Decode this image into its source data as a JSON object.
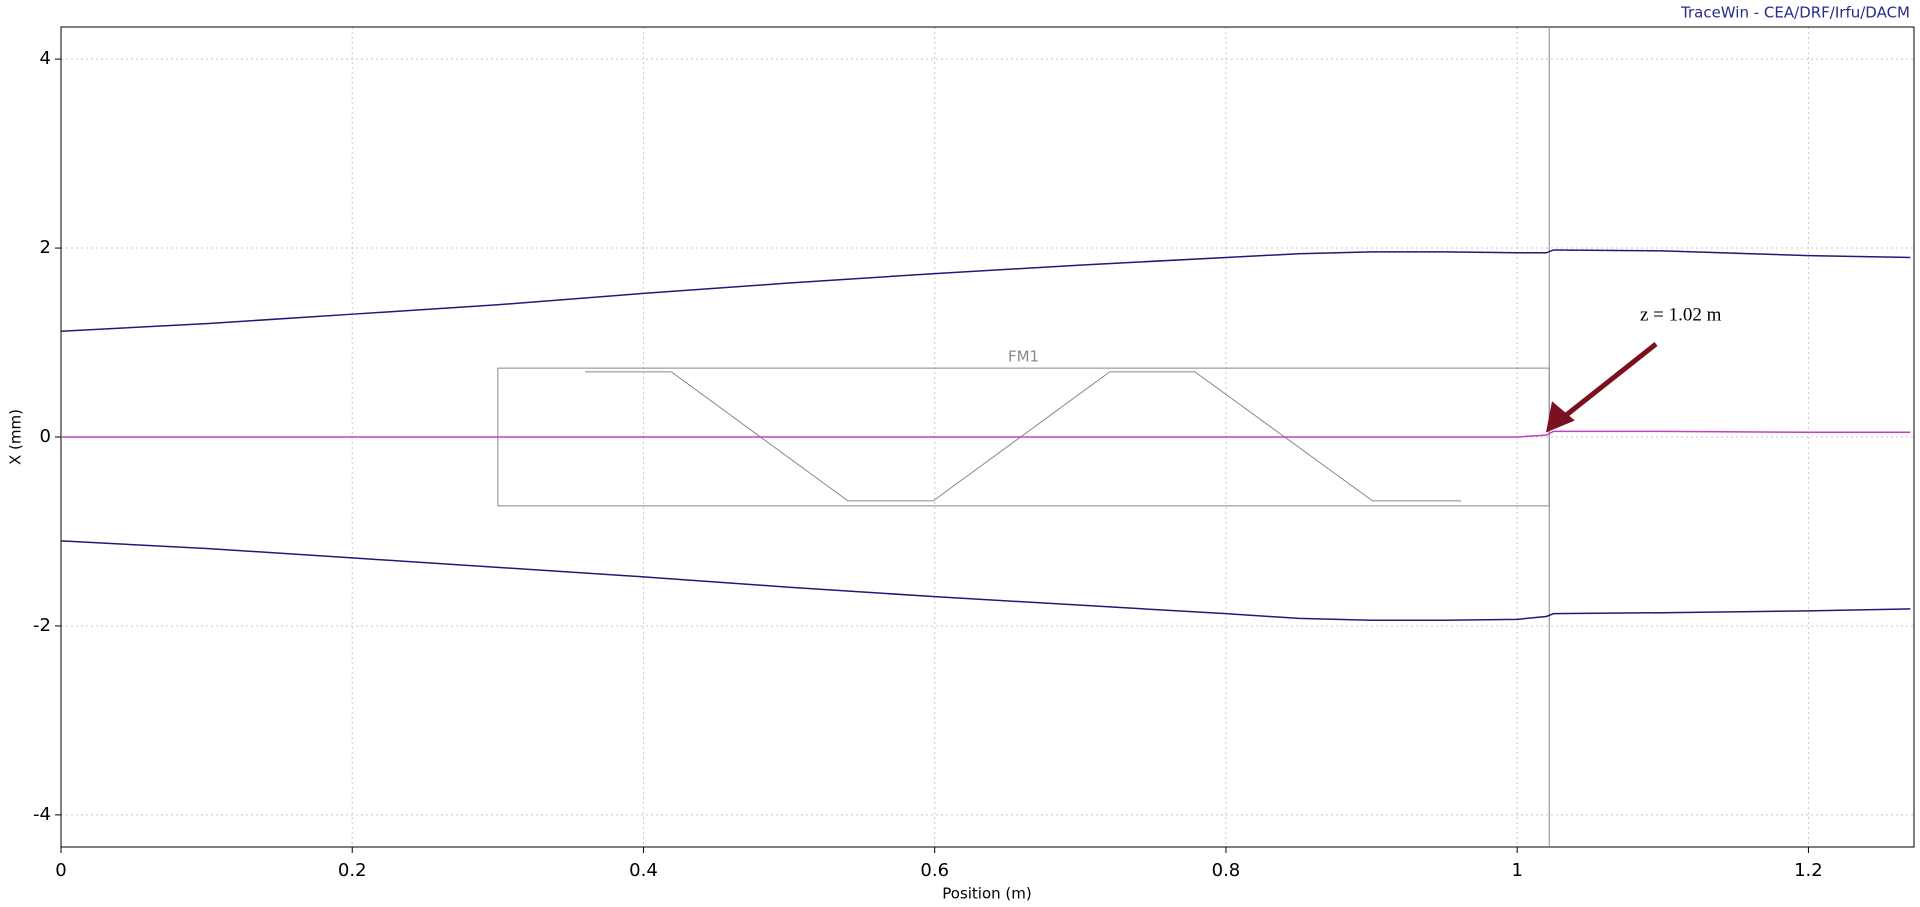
{
  "chart_data": {
    "type": "line",
    "credit": "TraceWin - CEA/DRF/Irfu/DACM",
    "x_label": "Position (m)",
    "y_label": "X (mm)",
    "x": [
      0,
      0.1,
      0.2,
      0.3,
      0.4,
      0.5,
      0.6,
      0.7,
      0.8,
      0.85,
      0.9,
      0.95,
      1.0,
      1.02,
      1.025,
      1.1,
      1.2,
      1.27
    ],
    "series": [
      {
        "color": "#1c1c78",
        "values": [
          1.12,
          1.2,
          1.3,
          1.4,
          1.52,
          1.63,
          1.73,
          1.82,
          1.9,
          1.94,
          1.96,
          1.96,
          1.95,
          1.95,
          1.98,
          1.97,
          1.92,
          1.9
        ]
      },
      {
        "color": "#c040c0",
        "values": [
          0,
          0,
          0,
          0,
          0,
          0,
          0,
          0,
          0,
          0,
          0,
          0,
          0,
          0.02,
          0.06,
          0.06,
          0.05,
          0.05
        ]
      },
      {
        "color": "#1c1c78",
        "values": [
          -1.1,
          -1.18,
          -1.28,
          -1.38,
          -1.48,
          -1.59,
          -1.69,
          -1.78,
          -1.87,
          -1.92,
          -1.94,
          -1.94,
          -1.93,
          -1.9,
          -1.87,
          -1.86,
          -1.84,
          -1.82
        ]
      }
    ],
    "xlim": [
      0,
      1.2725
    ],
    "ylim": [
      -4.34,
      4.34
    ],
    "xticks": [
      0,
      0.2,
      0.4,
      0.6,
      0.8,
      1,
      1.2
    ],
    "yticks": [
      -4,
      -2,
      0,
      2,
      4
    ],
    "grid": true,
    "elements": [
      {
        "label": "FM1",
        "start": 0.3,
        "end": 1.022
      }
    ],
    "annotation": "z = 1.02 m"
  }
}
